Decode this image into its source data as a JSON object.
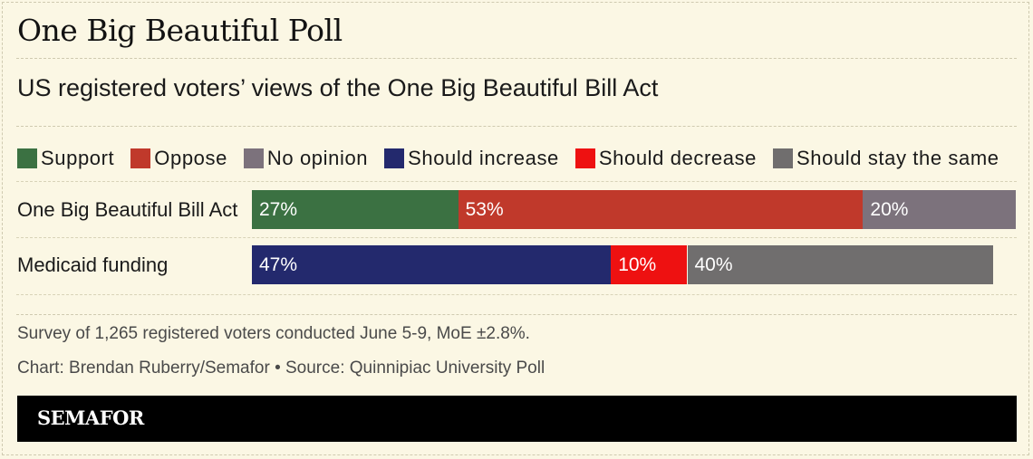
{
  "title": "One Big Beautiful Poll",
  "subtitle": "US registered voters’ views of the One Big Beautiful Bill Act",
  "legend": [
    {
      "label": "Support",
      "color": "#3b7142"
    },
    {
      "label": "Oppose",
      "color": "#c0392b"
    },
    {
      "label": "No opinion",
      "color": "#7c727c"
    },
    {
      "label": "Should increase",
      "color": "#23296d"
    },
    {
      "label": "Should decrease",
      "color": "#ee1111"
    },
    {
      "label": "Should stay the same",
      "color": "#706e6e"
    }
  ],
  "chart_data": {
    "type": "bar",
    "orientation": "horizontal",
    "stacked": true,
    "categories": [
      "One Big Beautiful Bill Act",
      "Medicaid funding"
    ],
    "rows": [
      {
        "category": "One Big Beautiful Bill Act",
        "segments": [
          {
            "name": "Support",
            "value": 27,
            "label": "27%",
            "color": "#3b7142"
          },
          {
            "name": "Oppose",
            "value": 53,
            "label": "53%",
            "color": "#c0392b"
          },
          {
            "name": "No opinion",
            "value": 20,
            "label": "20%",
            "color": "#7c727c"
          }
        ]
      },
      {
        "category": "Medicaid funding",
        "segments": [
          {
            "name": "Should increase",
            "value": 47,
            "label": "47%",
            "color": "#23296d"
          },
          {
            "name": "Should decrease",
            "value": 10,
            "label": "10%",
            "color": "#ee1111"
          },
          {
            "name": "Should stay the same",
            "value": 40,
            "label": "40%",
            "color": "#706e6e"
          }
        ]
      }
    ],
    "xlim": [
      0,
      100
    ],
    "grid": false,
    "legend_position": "top"
  },
  "notes": {
    "survey": "Survey of 1,265 registered voters conducted June 5-9, MoE ±2.8%.",
    "credit": "Chart: Brendan Ruberry/Semafor • Source: Quinnipiac University Poll"
  },
  "brand": "SEMAFOR"
}
